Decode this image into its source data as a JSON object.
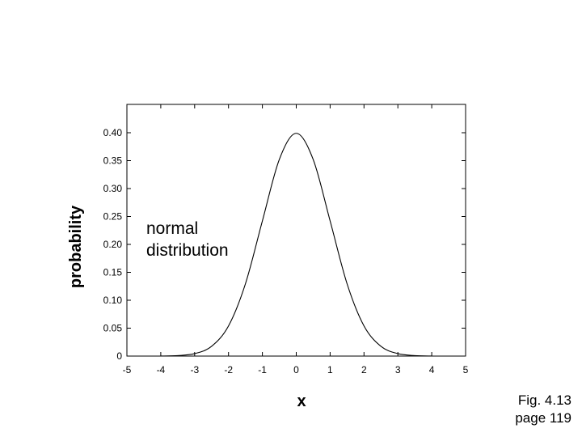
{
  "chart_data": {
    "type": "line",
    "title": "",
    "xlabel": "x",
    "ylabel": "probability",
    "xlim": [
      -5,
      5
    ],
    "ylim": [
      0,
      0.42
    ],
    "x_ticks": [
      -5,
      -4,
      -3,
      -2,
      -1,
      0,
      1,
      2,
      3,
      4,
      5
    ],
    "x_tick_labels": [
      "-5",
      "-4",
      "-3",
      "-2",
      "-1",
      "0",
      "1",
      "2",
      "3",
      "4",
      "5"
    ],
    "y_ticks": [
      0,
      0.05,
      0.1,
      0.15,
      0.2,
      0.25,
      0.3,
      0.35,
      0.4
    ],
    "y_tick_labels": [
      "0",
      "0.05",
      "0.10",
      "0.15",
      "0.20",
      "0.25",
      "0.30",
      "0.35",
      "0.40"
    ],
    "grid": false,
    "annotation": [
      "normal",
      "distribution"
    ],
    "series": [
      {
        "x": [
          -4,
          -3.5,
          -3,
          -2.5,
          -2,
          -1.5,
          -1,
          -0.5,
          0,
          0.5,
          1,
          1.5,
          2,
          2.5,
          3,
          3.5,
          4
        ],
        "y": [
          0.0001,
          0.0009,
          0.0044,
          0.0175,
          0.054,
          0.1295,
          0.242,
          0.3521,
          0.3989,
          0.3521,
          0.242,
          0.1295,
          0.054,
          0.0175,
          0.0044,
          0.0009,
          0.0001
        ],
        "color": "#000000"
      }
    ]
  },
  "caption": {
    "line1": "Fig. 4.13",
    "line2": "page 119"
  }
}
